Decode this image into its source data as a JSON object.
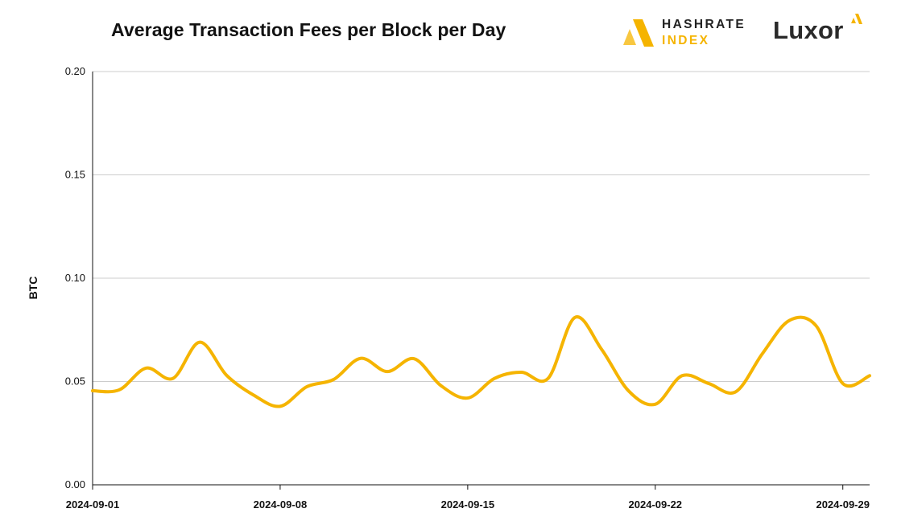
{
  "header": {
    "title": "Average Transaction Fees per Block per Day",
    "logo_hashrate_line1": "HASHRATE",
    "logo_hashrate_line2": "INDEX",
    "logo_luxor": "Luxor"
  },
  "colors": {
    "line": "#f5b400",
    "grid": "#cccccc",
    "axis": "#111111",
    "logo_accent": "#f5b400"
  },
  "chart_data": {
    "type": "line",
    "title": "Average Transaction Fees per Block per Day",
    "xlabel": "",
    "ylabel": "BTC",
    "ylim": [
      0,
      0.2
    ],
    "xlim": [
      "2024-09-01",
      "2024-09-30"
    ],
    "yticks": [
      "0.00",
      "0.05",
      "0.10",
      "0.15",
      "0.20"
    ],
    "xticks": [
      "2024-09-01",
      "2024-09-08",
      "2024-09-15",
      "2024-09-22",
      "2024-09-29"
    ],
    "grid": true,
    "legend": "none",
    "series": [
      {
        "x": [
          "2024-09-01",
          "2024-09-02",
          "2024-09-03",
          "2024-09-04",
          "2024-09-05",
          "2024-09-06",
          "2024-09-07",
          "2024-09-08",
          "2024-09-09",
          "2024-09-10",
          "2024-09-11",
          "2024-09-12",
          "2024-09-13",
          "2024-09-14",
          "2024-09-15",
          "2024-09-16",
          "2024-09-17",
          "2024-09-18",
          "2024-09-19",
          "2024-09-20",
          "2024-09-21",
          "2024-09-22",
          "2024-09-23",
          "2024-09-24",
          "2024-09-25",
          "2024-09-26",
          "2024-09-27",
          "2024-09-28",
          "2024-09-29",
          "2024-09-30"
        ],
        "values": [
          0.0455,
          0.046,
          0.0565,
          0.0515,
          0.069,
          0.053,
          0.0435,
          0.038,
          0.0475,
          0.051,
          0.0612,
          0.0548,
          0.061,
          0.048,
          0.042,
          0.0515,
          0.0545,
          0.0515,
          0.081,
          0.0655,
          0.0455,
          0.039,
          0.0528,
          0.049,
          0.045,
          0.0635,
          0.0795,
          0.077,
          0.049,
          0.0528
        ]
      }
    ]
  }
}
